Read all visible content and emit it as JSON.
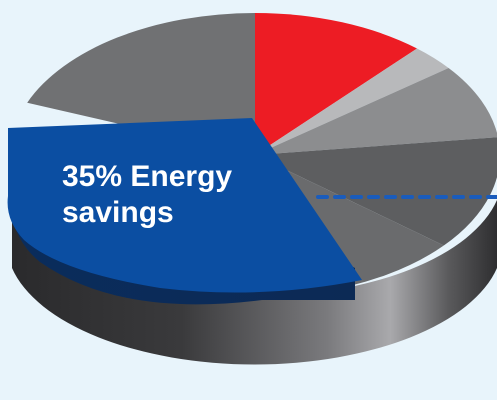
{
  "chart_data": {
    "type": "pie",
    "style": "3d",
    "annotation": {
      "line1": "35% Energy",
      "line2": "savings"
    },
    "slices": [
      {
        "value": 11.5,
        "color": "#ed1c24"
      },
      {
        "value": 3.0,
        "color": "#b8b9bb"
      },
      {
        "value": 8.5,
        "color": "#8c8d8f"
      },
      {
        "value": 13.0,
        "color": "#5d5e60"
      },
      {
        "value": 10.0,
        "color": "#6a6b6d"
      },
      {
        "value": 35.0,
        "color": "#0b4ea2",
        "exploded": true
      },
      {
        "value": 19.0,
        "color": "#707173"
      }
    ],
    "legend": "none",
    "grid": false
  },
  "colors": {
    "background": "#e8f4fb",
    "highlight": "#0b4ea2",
    "accent": "#ed1c24",
    "dashed_line": "#1a5cbc"
  }
}
